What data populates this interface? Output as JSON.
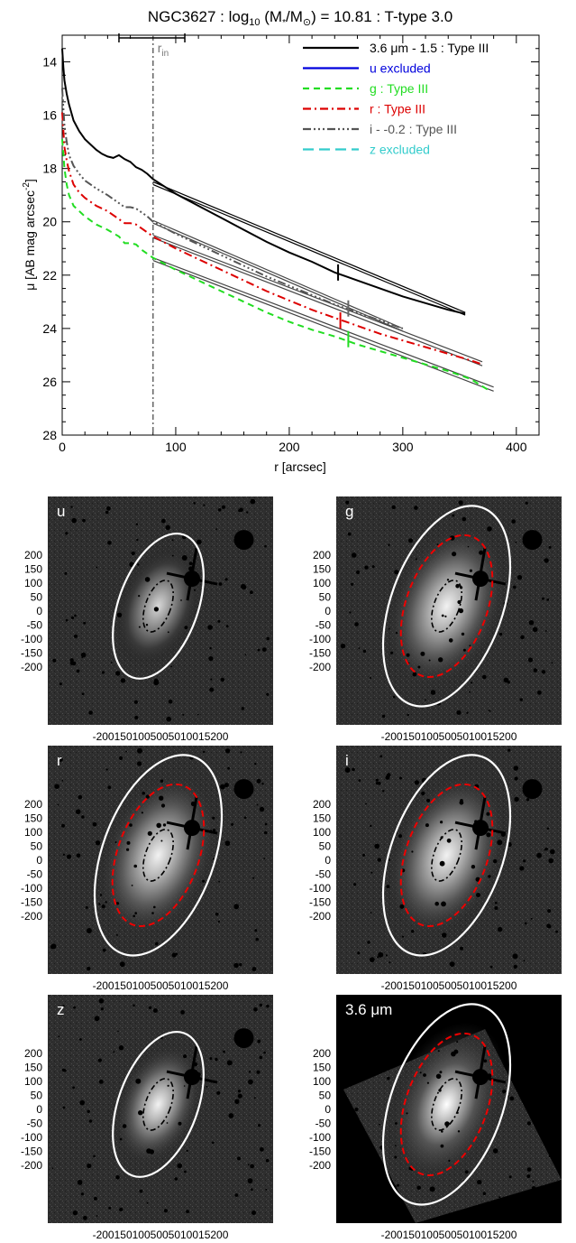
{
  "chart_data": [
    {
      "type": "line",
      "title": "NGC3627 : log",
      "title_parts": {
        "pre": "NGC3627 : log",
        "sub": "10",
        "mid": " (M",
        "star": "*",
        "slash": "/M",
        "sun": "⊙",
        "post": ") = 10.81 : T-type 3.0"
      },
      "xlabel": "r [arcsec]",
      "ylabel": "μ [AB mag arcsec",
      "ylabel_sup": "-2",
      "ylabel_end": "]",
      "xlim": [
        0,
        420
      ],
      "ylim": [
        28,
        13
      ],
      "xticks": [
        "0",
        "100",
        "200",
        "300",
        "400"
      ],
      "yticks": [
        "14",
        "16",
        "18",
        "20",
        "22",
        "24",
        "26",
        "28"
      ],
      "xtick_values": [
        0,
        100,
        200,
        300,
        400
      ],
      "ytick_values": [
        14,
        16,
        18,
        20,
        22,
        24,
        26,
        28
      ],
      "r_in": {
        "label": "r",
        "sub": "in",
        "value": 80,
        "range": [
          50,
          108
        ]
      },
      "legend": [
        {
          "text": "3.6 μm - 1.5 : Type III",
          "color": "#000000",
          "dash": ""
        },
        {
          "text": "u excluded",
          "color": "#0000dd",
          "dash": ""
        },
        {
          "text": "g : Type III",
          "color": "#22dd22",
          "dash": "7,5"
        },
        {
          "text": "r : Type III",
          "color": "#dd0000",
          "dash": "9,4,2,4"
        },
        {
          "text": "i - -0.2 : Type III",
          "color": "#555555",
          "dash": "9,3,2,3,2,3,2,3"
        },
        {
          "text": "z excluded",
          "color": "#33cccc",
          "dash": "12,6"
        }
      ],
      "series": [
        {
          "color": "#000000",
          "dash": "",
          "width": 2,
          "x": [
            0,
            1,
            2,
            4,
            6,
            8,
            10,
            15,
            20,
            25,
            30,
            35,
            40,
            45,
            50,
            55,
            60,
            65,
            70,
            75,
            80,
            100,
            120,
            140,
            160,
            180,
            200,
            220,
            240,
            260,
            280,
            300,
            320,
            340,
            355
          ],
          "y": [
            13.5,
            14.2,
            14.7,
            15.2,
            15.6,
            15.9,
            16.2,
            16.6,
            16.9,
            17.1,
            17.3,
            17.45,
            17.55,
            17.6,
            17.5,
            17.65,
            17.75,
            17.95,
            18.05,
            18.2,
            18.4,
            18.95,
            19.4,
            19.85,
            20.3,
            20.75,
            21.15,
            21.5,
            21.9,
            22.2,
            22.5,
            22.8,
            23.05,
            23.3,
            23.45
          ]
        },
        {
          "color": "#22dd22",
          "dash": "7,5",
          "width": 2,
          "x": [
            0,
            2,
            4,
            6,
            10,
            15,
            20,
            30,
            40,
            50,
            55,
            60,
            65,
            70,
            75,
            80,
            100,
            120,
            140,
            160,
            180,
            200,
            220,
            240,
            260,
            280,
            300,
            320,
            340,
            360,
            375
          ],
          "y": [
            16.9,
            18.0,
            18.6,
            19.0,
            19.4,
            19.6,
            19.8,
            20.1,
            20.3,
            20.55,
            20.8,
            20.8,
            20.85,
            21.05,
            21.2,
            21.35,
            21.8,
            22.2,
            22.6,
            23.0,
            23.4,
            23.75,
            24.05,
            24.3,
            24.6,
            24.85,
            25.1,
            25.35,
            25.6,
            25.9,
            26.3
          ]
        },
        {
          "color": "#dd0000",
          "dash": "9,4,2,4",
          "width": 2,
          "x": [
            0,
            2,
            4,
            6,
            10,
            15,
            20,
            30,
            40,
            50,
            55,
            60,
            65,
            70,
            75,
            80,
            100,
            120,
            140,
            160,
            180,
            200,
            220,
            240,
            260,
            280,
            300,
            320,
            340,
            360,
            370
          ],
          "y": [
            15.9,
            17.2,
            17.7,
            18.1,
            18.6,
            18.9,
            19.1,
            19.4,
            19.6,
            19.9,
            20.05,
            20.05,
            20.1,
            20.25,
            20.4,
            20.55,
            21.0,
            21.4,
            21.8,
            22.2,
            22.6,
            22.95,
            23.3,
            23.6,
            23.9,
            24.2,
            24.45,
            24.7,
            24.95,
            25.2,
            25.35
          ]
        },
        {
          "color": "#555555",
          "dash": "9,3,2,3,2,3,2,3",
          "width": 2,
          "x": [
            0,
            2,
            4,
            6,
            10,
            15,
            20,
            30,
            40,
            50,
            55,
            60,
            65,
            70,
            75,
            80,
            100,
            120,
            140,
            160,
            180,
            200,
            220,
            240,
            260,
            280,
            300
          ],
          "y": [
            15.0,
            16.4,
            17.0,
            17.5,
            17.9,
            18.2,
            18.45,
            18.75,
            19.0,
            19.3,
            19.45,
            19.45,
            19.5,
            19.65,
            19.8,
            20.0,
            20.45,
            20.85,
            21.25,
            21.65,
            22.05,
            22.4,
            22.75,
            23.1,
            23.4,
            23.7,
            24.0
          ]
        }
      ],
      "fits": [
        {
          "x": [
            80,
            355
          ],
          "y": [
            18.5,
            23.4
          ],
          "color": "#000000"
        },
        {
          "x": [
            80,
            355
          ],
          "y": [
            18.6,
            23.5
          ],
          "color": "#000000"
        },
        {
          "x": [
            80,
            300
          ],
          "y": [
            19.95,
            24.0
          ],
          "color": "#444444"
        },
        {
          "x": [
            80,
            300
          ],
          "y": [
            20.05,
            24.1
          ],
          "color": "#444444"
        },
        {
          "x": [
            80,
            370
          ],
          "y": [
            20.5,
            25.25
          ],
          "color": "#444444"
        },
        {
          "x": [
            80,
            370
          ],
          "y": [
            20.6,
            25.4
          ],
          "color": "#444444"
        },
        {
          "x": [
            80,
            380
          ],
          "y": [
            21.35,
            26.2
          ],
          "color": "#444444"
        },
        {
          "x": [
            80,
            380
          ],
          "y": [
            21.45,
            26.35
          ],
          "color": "#444444"
        }
      ],
      "breaks": [
        {
          "x": 243,
          "y": 21.9,
          "color": "#000000"
        },
        {
          "x": 252,
          "y": 23.25,
          "color": "#666666"
        },
        {
          "x": 245,
          "y": 23.7,
          "color": "#dd0000"
        },
        {
          "x": 252,
          "y": 24.4,
          "color": "#22dd22"
        }
      ]
    }
  ],
  "panels": [
    {
      "label": "u",
      "outer": true,
      "red": false,
      "band": "u"
    },
    {
      "label": "g",
      "outer": true,
      "red": true,
      "band": "g"
    },
    {
      "label": "r",
      "outer": true,
      "red": true,
      "band": "r"
    },
    {
      "label": "i",
      "outer": true,
      "red": true,
      "band": "i"
    },
    {
      "label": "z",
      "outer": true,
      "red": false,
      "band": "z"
    },
    {
      "label": "3.6 μm",
      "outer": true,
      "red": true,
      "band": "irac"
    }
  ],
  "panel_yticks": [
    "200",
    "150",
    "100",
    "50",
    "0",
    "-50",
    "-100",
    "-150",
    "-200"
  ],
  "panel_xtick_text": "-2001501005005010015200"
}
